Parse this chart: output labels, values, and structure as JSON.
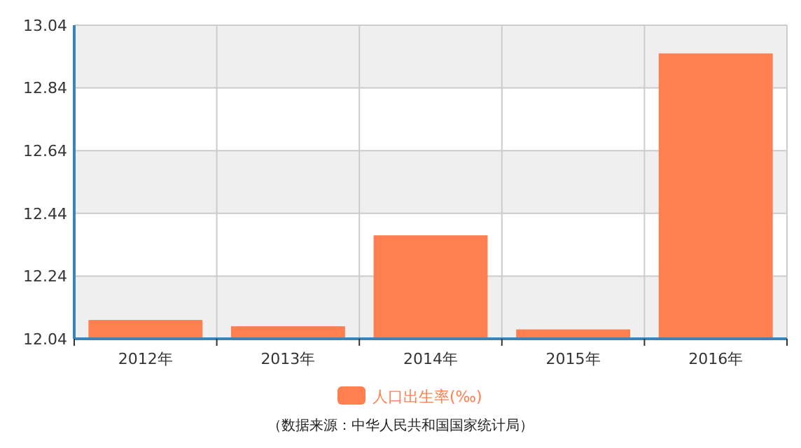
{
  "chart_data": {
    "type": "bar",
    "categories": [
      "2012年",
      "2013年",
      "2014年",
      "2015年",
      "2016年"
    ],
    "series": [
      {
        "name": "人口出生率(‰)",
        "color": "#ff7f50",
        "values": [
          12.1,
          12.08,
          12.37,
          12.07,
          12.95
        ]
      }
    ],
    "ylim": [
      12.04,
      13.04
    ],
    "yticks": [
      12.04,
      12.24,
      12.44,
      12.64,
      12.84,
      13.04
    ],
    "grid": true,
    "legend": "bottom",
    "annotations": [
      "（数据来源：中华人民共和国国家统计局）"
    ]
  }
}
